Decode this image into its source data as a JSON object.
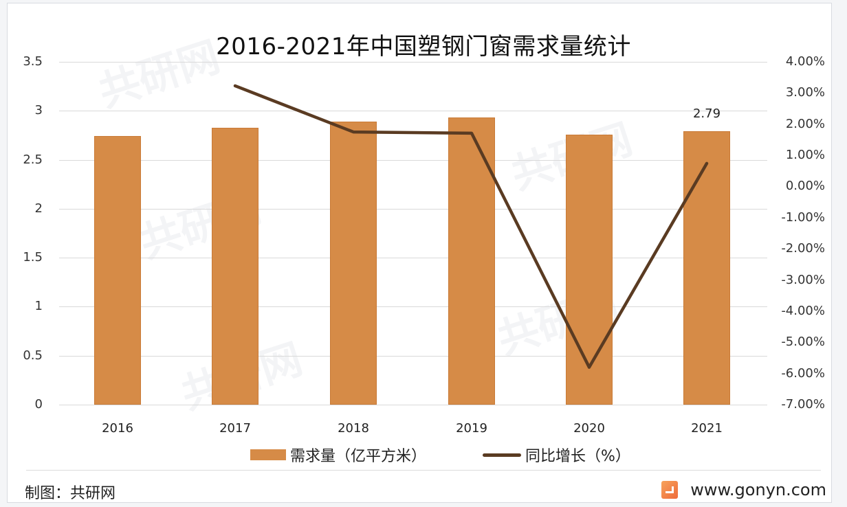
{
  "title": "2016-2021年中国塑钢门窗需求量统计",
  "left_axis": {
    "ticks": [
      "3.5",
      "3",
      "2.5",
      "2",
      "1.5",
      "1",
      "0.5",
      "0"
    ]
  },
  "right_axis": {
    "ticks": [
      "4.00%",
      "3.00%",
      "2.00%",
      "1.00%",
      "0.00%",
      "-1.00%",
      "-2.00%",
      "-3.00%",
      "-4.00%",
      "-5.00%",
      "-6.00%",
      "-7.00%"
    ]
  },
  "x_axis": {
    "ticks": [
      "2016",
      "2017",
      "2018",
      "2019",
      "2020",
      "2021"
    ]
  },
  "data_labels": {
    "2021": "2.79"
  },
  "legend": {
    "bar_label": "需求量（亿平方米）",
    "line_label": "同比增长（%）"
  },
  "footer": {
    "credit": "制图：共研网",
    "website": "www.gonyn.com"
  },
  "watermark": {
    "text": "共研网",
    "url_text": "www.gonyn.com"
  },
  "colors": {
    "bar": "#d68b47",
    "line": "#5a3b22",
    "grid": "#d9d9d9",
    "logo": "#ee6a3a"
  },
  "chart_data": {
    "type": "bar+line",
    "title": "2016-2021年中国塑钢门窗需求量统计",
    "categories": [
      "2016",
      "2017",
      "2018",
      "2019",
      "2020",
      "2021"
    ],
    "series": [
      {
        "name": "需求量（亿平方米）",
        "type": "bar",
        "axis": "left",
        "values": [
          2.74,
          2.83,
          2.89,
          2.93,
          2.76,
          2.79
        ]
      },
      {
        "name": "同比增长（%）",
        "type": "line",
        "axis": "right",
        "values": [
          null,
          3.23,
          1.75,
          1.71,
          -5.8,
          0.74
        ]
      }
    ],
    "annotations": [
      {
        "category": "2021",
        "series": "需求量（亿平方米）",
        "text": "2.79"
      }
    ],
    "xlabel": "",
    "ylabel_left": "",
    "ylabel_right": "",
    "ylim_left": [
      0,
      3.5
    ],
    "ylim_right": [
      -7,
      4
    ],
    "y_ticks_left": [
      0,
      0.5,
      1,
      1.5,
      2,
      2.5,
      3,
      3.5
    ],
    "y_ticks_right_pct": [
      -7,
      -6,
      -5,
      -4,
      -3,
      -2,
      -1,
      0,
      1,
      2,
      3,
      4
    ],
    "grid": true,
    "legend_position": "bottom"
  }
}
